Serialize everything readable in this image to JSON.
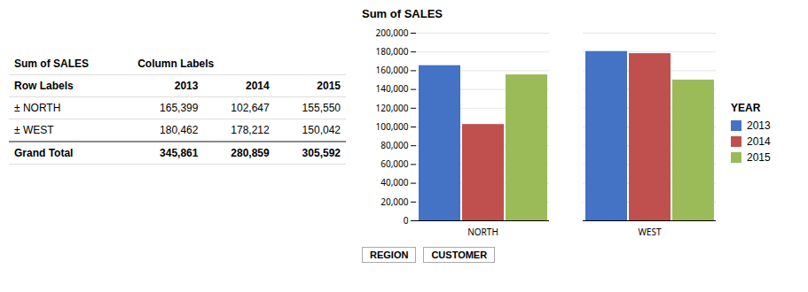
{
  "chart_data": [
    {
      "type": "bar",
      "title": "Sum of SALES",
      "categories": [
        "NORTH",
        "WEST"
      ],
      "series": [
        {
          "name": "2013",
          "color": "#4472C4",
          "values": [
            165399,
            180462
          ]
        },
        {
          "name": "2014",
          "color": "#C0504D",
          "values": [
            102647,
            178212
          ]
        },
        {
          "name": "2015",
          "color": "#9BBB59",
          "values": [
            155550,
            150042
          ]
        }
      ],
      "ylim": [
        0,
        200000
      ],
      "yticks": [
        0,
        {
          "value": 20000,
          "label": "20,000"
        },
        {
          "value": 40000,
          "label": "40,000"
        },
        {
          "value": 60000,
          "label": "60,000"
        },
        {
          "value": 80000,
          "label": "80,000"
        },
        {
          "value": 100000,
          "label": "100,000"
        },
        {
          "value": 120000,
          "label": "120,000"
        },
        {
          "value": 140000,
          "label": "140,000"
        },
        {
          "value": 160000,
          "label": "160,000"
        },
        {
          "value": 180000,
          "label": "180,000"
        },
        {
          "value": 200000,
          "label": "200,000"
        }
      ],
      "grid": true,
      "legend": "right",
      "legend_title": "YEAR",
      "annotations": [
        "REGION",
        "CUSTOMER"
      ]
    },
    {
      "type": "table",
      "title": "Sum of SALES",
      "column_label": "Column Labels",
      "row_label": "Row Labels",
      "columns": [
        "2013",
        "2014",
        "2015"
      ],
      "categories": [
        "± NORTH",
        "± WEST",
        "Grand Total"
      ],
      "values": [
        [
          165399,
          102647,
          155550
        ],
        [
          180462,
          178212,
          150042
        ],
        [
          345861,
          280859,
          305592
        ]
      ],
      "value_labels": [
        [
          "165,399",
          "102,647",
          "155,550"
        ],
        [
          "180,462",
          "178,212",
          "150,042"
        ],
        [
          "345,861",
          "280,859",
          "305,592"
        ]
      ]
    }
  ]
}
